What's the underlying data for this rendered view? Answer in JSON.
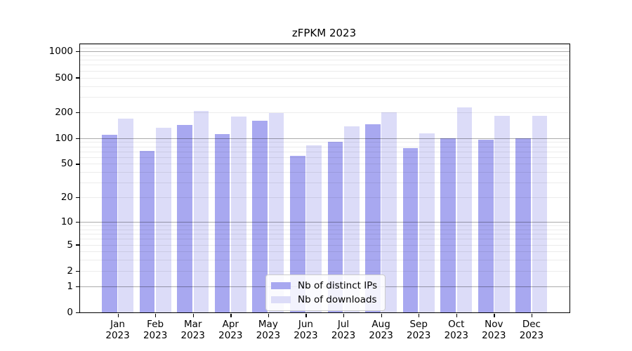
{
  "chart_data": {
    "type": "bar",
    "title": "zFPKM 2023",
    "categories": [
      "Jan",
      "Feb",
      "Mar",
      "Apr",
      "May",
      "Jun",
      "Jul",
      "Aug",
      "Sep",
      "Oct",
      "Nov",
      "Dec"
    ],
    "year_label": "2023",
    "series": [
      {
        "name": "Nb of distinct IPs",
        "color": "#a8a8f0",
        "values": [
          110,
          72,
          142,
          112,
          160,
          63,
          91,
          145,
          77,
          101,
          96,
          101
        ]
      },
      {
        "name": "Nb of downloads",
        "color": "#dcdcf8",
        "values": [
          170,
          134,
          210,
          178,
          198,
          83,
          138,
          200,
          115,
          228,
          184,
          182
        ]
      }
    ],
    "xlabel": "",
    "ylabel": "",
    "y_scale": "symlog-log1p",
    "y_ticks": [
      0,
      1,
      2,
      5,
      10,
      20,
      50,
      100,
      200,
      500,
      1000
    ],
    "y_max": 1229,
    "grid_major": [
      1,
      10,
      100,
      1000
    ],
    "grid_minor": [
      2,
      3,
      4,
      5,
      6,
      7,
      8,
      9,
      20,
      30,
      40,
      50,
      60,
      70,
      80,
      90,
      200,
      300,
      400,
      500,
      600,
      700,
      800,
      900,
      1100,
      1200
    ],
    "grid_on": true,
    "legend_position": "lower center inside axes"
  }
}
